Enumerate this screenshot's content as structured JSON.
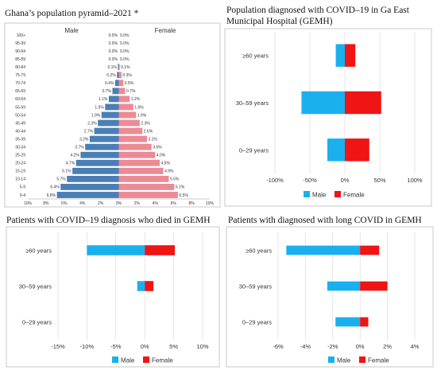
{
  "chart_data": [
    {
      "type": "bar",
      "orientation": "horizontal",
      "title": "Ghana’s population pyramid–2021 *",
      "subtitle_left": "Male",
      "subtitle_right": "Female",
      "categories": [
        "100+",
        "95-99",
        "90-94",
        "85-89",
        "80-84",
        "75-79",
        "70-74",
        "65-69",
        "60-64",
        "55-59",
        "50-54",
        "45-49",
        "40-44",
        "35-39",
        "30-34",
        "25-29",
        "20-24",
        "15-19",
        "10-14",
        "5-9",
        "0-4"
      ],
      "series": [
        {
          "name": "Male",
          "color": "#4a7fb5",
          "values": [
            0.0,
            0.0,
            0.0,
            0.0,
            0.1,
            0.2,
            0.4,
            0.7,
            1.1,
            1.5,
            1.9,
            2.3,
            2.7,
            3.2,
            3.7,
            4.2,
            4.7,
            5.1,
            5.7,
            6.4,
            6.8
          ],
          "labels": [
            "0.0%",
            "0.0%",
            "0.0%",
            "0.0%",
            "0.1%",
            "0.2%",
            "0.4%",
            "0.7%",
            "1.1%",
            "1.5%",
            "1.9%",
            "2.3%",
            "2.7%",
            "3.2%",
            "3.7%",
            "4.2%",
            "4.7%",
            "5.1%",
            "5.7%",
            "6.4%",
            "6.8%"
          ]
        },
        {
          "name": "Female",
          "color": "#ec8a96",
          "values": [
            0.0,
            0.0,
            0.0,
            0.0,
            0.1,
            0.3,
            0.5,
            0.7,
            1.2,
            1.6,
            1.9,
            2.3,
            2.6,
            3.1,
            3.6,
            4.0,
            4.5,
            4.9,
            5.5,
            6.1,
            6.5
          ],
          "labels": [
            "0.0%",
            "0.0%",
            "0.0%",
            "0.0%",
            "0.1%",
            "0.3%",
            "0.5%",
            "0.7%",
            "1.2%",
            "1.6%",
            "1.9%",
            "2.3%",
            "2.6%",
            "3.1%",
            "3.6%",
            "4.0%",
            "4.5%",
            "4.9%",
            "5.5%",
            "6.1%",
            "6.5%"
          ]
        }
      ],
      "xlim": [
        -10,
        10
      ],
      "xticks": [
        -10,
        -8,
        -6,
        -4,
        -2,
        0,
        2,
        4,
        6,
        8,
        10
      ],
      "xtick_labels": [
        "10%",
        "8%",
        "6%",
        "4%",
        "2%",
        "0%",
        "2%",
        "4%",
        "6%",
        "8%",
        "10%"
      ],
      "grid": false
    },
    {
      "type": "bar",
      "orientation": "horizontal",
      "title": "Population diagnosed with COVID–19 in Ga East Municipal Hospital (GEMH)",
      "categories": [
        "≥60 years",
        "30–59 years",
        "0–29 years"
      ],
      "series": [
        {
          "name": "Male",
          "color": "#1ab0ee",
          "values": [
            -13,
            -62,
            -25
          ]
        },
        {
          "name": "Female",
          "color": "#f01414",
          "values": [
            15,
            52,
            35
          ]
        }
      ],
      "xlim": [
        -100,
        100
      ],
      "xticks": [
        -100,
        -50,
        0,
        50,
        100
      ],
      "xtick_labels": [
        "-100%",
        "-50%",
        "0%",
        "50%",
        "100%"
      ],
      "legend": "bottom",
      "grid": true
    },
    {
      "type": "bar",
      "orientation": "horizontal",
      "title": "Patients with COVID–19 diagnosis who died in GEMH",
      "categories": [
        "≥60 years",
        "30–59 years",
        "0–29 years"
      ],
      "series": [
        {
          "name": "Male",
          "color": "#1ab0ee",
          "values": [
            -10,
            -1.3,
            0
          ]
        },
        {
          "name": "Female",
          "color": "#f01414",
          "values": [
            5.2,
            1.5,
            0
          ]
        }
      ],
      "xlim": [
        -15,
        10
      ],
      "xticks": [
        -15,
        -10,
        -5,
        0,
        5,
        10
      ],
      "xtick_labels": [
        "-15%",
        "-10%",
        "-5%",
        "0%",
        "5%",
        "10%"
      ],
      "legend": "bottom",
      "grid": true
    },
    {
      "type": "bar",
      "orientation": "horizontal",
      "title": "Patients with diagnosed with long COVID in GEMH",
      "categories": [
        "≥60 years",
        "30–59 years",
        "0–29 years"
      ],
      "series": [
        {
          "name": "Male",
          "color": "#1ab0ee",
          "values": [
            -5.4,
            -2.4,
            -1.8
          ]
        },
        {
          "name": "Female",
          "color": "#f01414",
          "values": [
            1.4,
            2.0,
            0.6
          ]
        }
      ],
      "xlim": [
        -6,
        4
      ],
      "xticks": [
        -6,
        -4,
        -2,
        0,
        2,
        4
      ],
      "xtick_labels": [
        "-6%",
        "-4%",
        "-2%",
        "0%",
        "2%",
        "4%"
      ],
      "legend": "bottom",
      "grid": true
    }
  ]
}
